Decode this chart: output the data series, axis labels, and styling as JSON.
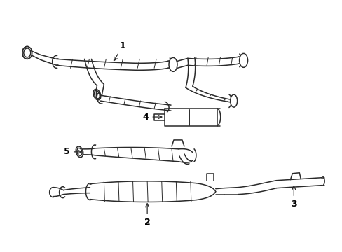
{
  "background_color": "#ffffff",
  "line_color": "#2a2a2a",
  "label_color": "#000000",
  "figsize": [
    4.89,
    3.6
  ],
  "dpi": 100,
  "lw": 1.1
}
